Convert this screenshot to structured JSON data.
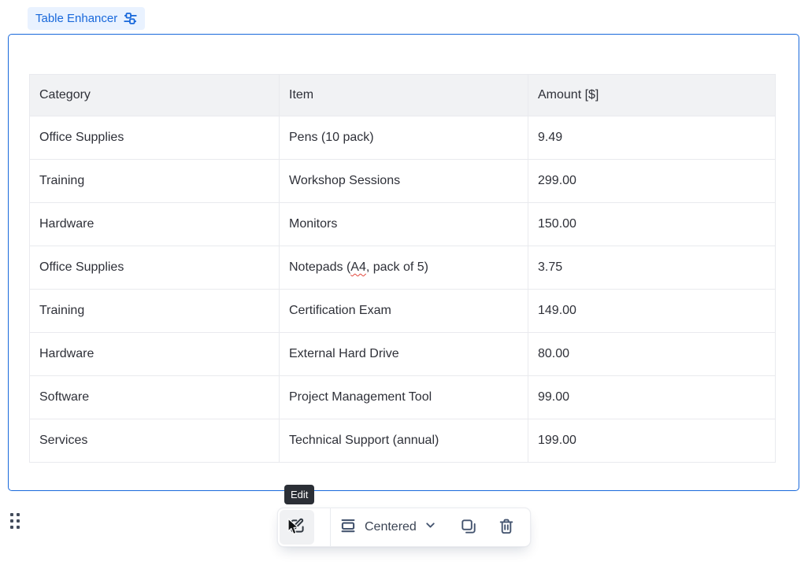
{
  "badge": {
    "label": "Table Enhancer",
    "icon": "sliders-icon"
  },
  "table": {
    "columns": [
      "Category",
      "Item",
      "Amount [$]"
    ],
    "rows": [
      [
        "Office Supplies",
        "Pens (10 pack)",
        "9.49"
      ],
      [
        "Training",
        "Workshop Sessions",
        "299.00"
      ],
      [
        "Hardware",
        "Monitors",
        "150.00"
      ],
      [
        "Office Supplies",
        "Notepads (A4, pack of 5)",
        "3.75"
      ],
      [
        "Training",
        "Certification Exam",
        "149.00"
      ],
      [
        "Hardware",
        "External Hard Drive",
        "80.00"
      ],
      [
        "Software",
        "Project Management Tool",
        "99.00"
      ],
      [
        "Services",
        "Technical Support (annual)",
        "199.00"
      ]
    ],
    "misspelled": {
      "row": 3,
      "col": 1,
      "word": "A4"
    }
  },
  "tooltip": {
    "text": "Edit"
  },
  "toolbar": {
    "edit_icon": "edit-pencil-icon",
    "layout": {
      "selected": "Centered",
      "icon": "align-center-icon",
      "chevron": "chevron-down-icon"
    },
    "copy_icon": "copy-icon",
    "delete_icon": "trash-icon"
  },
  "colors": {
    "selection_blue": "#1868DB",
    "badge_bg": "#E9F2FF",
    "header_bg": "#F1F2F4",
    "table_border": "#E9EAEE",
    "text": "#2E3038",
    "icon": "#44546F",
    "tooltip_bg": "#2B2F36",
    "spellcheck_red": "#E2483D"
  }
}
